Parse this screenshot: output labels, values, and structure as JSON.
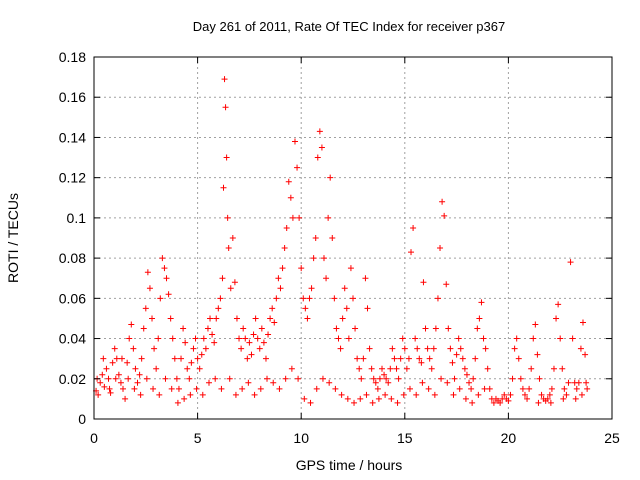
{
  "chart_data": {
    "type": "scatter",
    "title": "Day 261 of 2011, Rate Of TEC Index for receiver p367",
    "xlabel": "GPS time / hours",
    "ylabel": "ROTI / TECUs",
    "xlim": [
      0,
      25
    ],
    "ylim": [
      0,
      0.18
    ],
    "xticks": [
      0,
      5,
      10,
      15,
      20,
      25
    ],
    "xtick_labels": [
      "0",
      "5",
      "10",
      "15",
      "20",
      "25"
    ],
    "yticks": [
      0,
      0.02,
      0.04,
      0.06,
      0.08,
      0.1,
      0.12,
      0.14,
      0.16,
      0.18
    ],
    "ytick_labels": [
      "0",
      "0.02",
      "0.04",
      "0.06",
      "0.08",
      "0.1",
      "0.12",
      "0.14",
      "0.16",
      "0.18"
    ],
    "grid": true,
    "marker": "plus",
    "color": "#ff0000",
    "series": [
      {
        "points": [
          [
            0.1,
            0.014
          ],
          [
            0.2,
            0.012
          ],
          [
            0.3,
            0.018
          ],
          [
            0.4,
            0.022
          ],
          [
            0.5,
            0.016
          ],
          [
            0.6,
            0.025
          ],
          [
            0.7,
            0.02
          ],
          [
            0.8,
            0.013
          ],
          [
            0.9,
            0.028
          ],
          [
            1.0,
            0.035
          ],
          [
            1.1,
            0.03
          ],
          [
            1.2,
            0.022
          ],
          [
            1.3,
            0.018
          ],
          [
            1.4,
            0.015
          ],
          [
            1.5,
            0.01
          ],
          [
            1.6,
            0.028
          ],
          [
            1.7,
            0.04
          ],
          [
            1.8,
            0.047
          ],
          [
            1.9,
            0.035
          ],
          [
            2.0,
            0.025
          ],
          [
            2.1,
            0.018
          ],
          [
            2.2,
            0.022
          ],
          [
            2.3,
            0.03
          ],
          [
            2.4,
            0.045
          ],
          [
            2.5,
            0.055
          ],
          [
            2.6,
            0.073
          ],
          [
            2.7,
            0.065
          ],
          [
            2.8,
            0.05
          ],
          [
            2.9,
            0.035
          ],
          [
            3.0,
            0.025
          ],
          [
            3.1,
            0.04
          ],
          [
            3.2,
            0.06
          ],
          [
            3.3,
            0.08
          ],
          [
            3.4,
            0.075
          ],
          [
            3.5,
            0.07
          ],
          [
            3.6,
            0.062
          ],
          [
            3.7,
            0.05
          ],
          [
            3.8,
            0.04
          ],
          [
            3.9,
            0.03
          ],
          [
            4.0,
            0.02
          ],
          [
            4.1,
            0.015
          ],
          [
            4.2,
            0.03
          ],
          [
            4.3,
            0.045
          ],
          [
            4.4,
            0.038
          ],
          [
            4.5,
            0.025
          ],
          [
            4.6,
            0.02
          ],
          [
            4.7,
            0.028
          ],
          [
            4.8,
            0.035
          ],
          [
            4.9,
            0.04
          ],
          [
            5.0,
            0.03
          ],
          [
            5.1,
            0.025
          ],
          [
            5.2,
            0.032
          ],
          [
            5.3,
            0.04
          ],
          [
            5.4,
            0.035
          ],
          [
            5.5,
            0.045
          ],
          [
            5.6,
            0.05
          ],
          [
            5.7,
            0.042
          ],
          [
            5.8,
            0.038
          ],
          [
            5.9,
            0.05
          ],
          [
            6.0,
            0.055
          ],
          [
            6.1,
            0.06
          ],
          [
            6.2,
            0.07
          ],
          [
            6.25,
            0.115
          ],
          [
            6.3,
            0.169
          ],
          [
            6.35,
            0.155
          ],
          [
            6.4,
            0.13
          ],
          [
            6.45,
            0.1
          ],
          [
            6.5,
            0.085
          ],
          [
            6.6,
            0.065
          ],
          [
            6.7,
            0.09
          ],
          [
            6.8,
            0.068
          ],
          [
            6.9,
            0.05
          ],
          [
            7.0,
            0.04
          ],
          [
            7.1,
            0.035
          ],
          [
            7.2,
            0.045
          ],
          [
            7.3,
            0.04
          ],
          [
            7.4,
            0.03
          ],
          [
            7.5,
            0.038
          ],
          [
            7.6,
            0.032
          ],
          [
            7.7,
            0.042
          ],
          [
            7.8,
            0.05
          ],
          [
            7.9,
            0.04
          ],
          [
            8.0,
            0.035
          ],
          [
            8.1,
            0.045
          ],
          [
            8.2,
            0.038
          ],
          [
            8.3,
            0.03
          ],
          [
            8.4,
            0.042
          ],
          [
            8.5,
            0.05
          ],
          [
            8.6,
            0.055
          ],
          [
            8.7,
            0.048
          ],
          [
            8.8,
            0.06
          ],
          [
            8.9,
            0.07
          ],
          [
            9.0,
            0.065
          ],
          [
            9.1,
            0.075
          ],
          [
            9.2,
            0.085
          ],
          [
            9.3,
            0.095
          ],
          [
            9.4,
            0.118
          ],
          [
            9.5,
            0.11
          ],
          [
            9.6,
            0.1
          ],
          [
            9.7,
            0.138
          ],
          [
            9.8,
            0.125
          ],
          [
            9.9,
            0.1
          ],
          [
            10.0,
            0.075
          ],
          [
            10.1,
            0.06
          ],
          [
            10.2,
            0.055
          ],
          [
            10.3,
            0.05
          ],
          [
            10.4,
            0.06
          ],
          [
            10.5,
            0.065
          ],
          [
            10.6,
            0.08
          ],
          [
            10.7,
            0.09
          ],
          [
            10.8,
            0.13
          ],
          [
            10.9,
            0.143
          ],
          [
            11.0,
            0.135
          ],
          [
            11.1,
            0.08
          ],
          [
            11.2,
            0.07
          ],
          [
            11.3,
            0.1
          ],
          [
            11.4,
            0.12
          ],
          [
            11.5,
            0.09
          ],
          [
            11.6,
            0.06
          ],
          [
            11.7,
            0.045
          ],
          [
            11.8,
            0.04
          ],
          [
            11.9,
            0.035
          ],
          [
            12.0,
            0.05
          ],
          [
            12.1,
            0.065
          ],
          [
            12.2,
            0.055
          ],
          [
            12.3,
            0.04
          ],
          [
            12.4,
            0.075
          ],
          [
            12.5,
            0.06
          ],
          [
            12.6,
            0.045
          ],
          [
            12.7,
            0.03
          ],
          [
            12.8,
            0.025
          ],
          [
            12.9,
            0.02
          ],
          [
            13.0,
            0.03
          ],
          [
            13.1,
            0.07
          ],
          [
            13.2,
            0.055
          ],
          [
            13.3,
            0.035
          ],
          [
            13.4,
            0.025
          ],
          [
            13.5,
            0.02
          ],
          [
            13.6,
            0.018
          ],
          [
            13.7,
            0.015
          ],
          [
            13.8,
            0.02
          ],
          [
            13.9,
            0.025
          ],
          [
            14.0,
            0.022
          ],
          [
            14.1,
            0.02
          ],
          [
            14.2,
            0.018
          ],
          [
            14.3,
            0.025
          ],
          [
            14.4,
            0.035
          ],
          [
            14.5,
            0.03
          ],
          [
            14.6,
            0.025
          ],
          [
            14.7,
            0.02
          ],
          [
            14.8,
            0.03
          ],
          [
            14.9,
            0.04
          ],
          [
            15.0,
            0.035
          ],
          [
            15.1,
            0.025
          ],
          [
            15.2,
            0.03
          ],
          [
            15.3,
            0.083
          ],
          [
            15.4,
            0.095
          ],
          [
            15.5,
            0.04
          ],
          [
            15.6,
            0.035
          ],
          [
            15.7,
            0.03
          ],
          [
            15.8,
            0.028
          ],
          [
            15.9,
            0.068
          ],
          [
            16.0,
            0.045
          ],
          [
            16.1,
            0.035
          ],
          [
            16.2,
            0.03
          ],
          [
            16.3,
            0.025
          ],
          [
            16.4,
            0.035
          ],
          [
            16.5,
            0.045
          ],
          [
            16.6,
            0.06
          ],
          [
            16.7,
            0.085
          ],
          [
            16.8,
            0.108
          ],
          [
            16.9,
            0.101
          ],
          [
            17.0,
            0.067
          ],
          [
            17.1,
            0.045
          ],
          [
            17.2,
            0.035
          ],
          [
            17.3,
            0.028
          ],
          [
            17.4,
            0.02
          ],
          [
            17.5,
            0.032
          ],
          [
            17.6,
            0.04
          ],
          [
            17.7,
            0.035
          ],
          [
            17.8,
            0.03
          ],
          [
            17.9,
            0.025
          ],
          [
            18.0,
            0.022
          ],
          [
            18.1,
            0.018
          ],
          [
            18.2,
            0.015
          ],
          [
            18.3,
            0.02
          ],
          [
            18.4,
            0.03
          ],
          [
            18.5,
            0.045
          ],
          [
            18.6,
            0.05
          ],
          [
            18.7,
            0.058
          ],
          [
            18.8,
            0.04
          ],
          [
            18.9,
            0.035
          ],
          [
            19.0,
            0.025
          ],
          [
            19.1,
            0.015
          ],
          [
            19.2,
            0.01
          ],
          [
            19.3,
            0.008
          ],
          [
            19.4,
            0.01
          ],
          [
            19.5,
            0.009
          ],
          [
            19.6,
            0.008
          ],
          [
            19.7,
            0.01
          ],
          [
            19.8,
            0.012
          ],
          [
            19.9,
            0.01
          ],
          [
            20.0,
            0.009
          ],
          [
            20.1,
            0.012
          ],
          [
            20.2,
            0.02
          ],
          [
            20.3,
            0.035
          ],
          [
            20.4,
            0.04
          ],
          [
            20.5,
            0.03
          ],
          [
            20.6,
            0.02
          ],
          [
            20.7,
            0.015
          ],
          [
            20.8,
            0.012
          ],
          [
            20.9,
            0.01
          ],
          [
            21.0,
            0.015
          ],
          [
            21.1,
            0.025
          ],
          [
            21.2,
            0.04
          ],
          [
            21.3,
            0.047
          ],
          [
            21.4,
            0.032
          ],
          [
            21.5,
            0.02
          ],
          [
            21.6,
            0.012
          ],
          [
            21.7,
            0.01
          ],
          [
            21.8,
            0.009
          ],
          [
            21.9,
            0.01
          ],
          [
            22.0,
            0.012
          ],
          [
            22.1,
            0.015
          ],
          [
            22.2,
            0.025
          ],
          [
            22.3,
            0.05
          ],
          [
            22.4,
            0.057
          ],
          [
            22.5,
            0.04
          ],
          [
            22.6,
            0.025
          ],
          [
            22.7,
            0.015
          ],
          [
            22.8,
            0.012
          ],
          [
            22.9,
            0.018
          ],
          [
            23.0,
            0.078
          ],
          [
            23.1,
            0.04
          ],
          [
            23.2,
            0.018
          ],
          [
            23.3,
            0.015
          ],
          [
            23.4,
            0.018
          ],
          [
            23.5,
            0.035
          ],
          [
            23.6,
            0.048
          ],
          [
            23.7,
            0.032
          ],
          [
            23.8,
            0.015
          ],
          [
            0.15,
            0.02
          ],
          [
            0.45,
            0.03
          ],
          [
            0.75,
            0.015
          ],
          [
            1.05,
            0.02
          ],
          [
            1.35,
            0.03
          ],
          [
            1.65,
            0.02
          ],
          [
            1.95,
            0.015
          ],
          [
            2.25,
            0.012
          ],
          [
            2.55,
            0.02
          ],
          [
            2.85,
            0.015
          ],
          [
            3.15,
            0.012
          ],
          [
            3.45,
            0.02
          ],
          [
            3.75,
            0.015
          ],
          [
            4.05,
            0.008
          ],
          [
            4.35,
            0.01
          ],
          [
            4.65,
            0.012
          ],
          [
            4.95,
            0.015
          ],
          [
            5.25,
            0.012
          ],
          [
            5.55,
            0.018
          ],
          [
            5.85,
            0.02
          ],
          [
            6.15,
            0.015
          ],
          [
            6.55,
            0.02
          ],
          [
            6.85,
            0.012
          ],
          [
            7.15,
            0.015
          ],
          [
            7.45,
            0.018
          ],
          [
            7.75,
            0.012
          ],
          [
            8.05,
            0.015
          ],
          [
            8.35,
            0.02
          ],
          [
            8.65,
            0.018
          ],
          [
            8.95,
            0.015
          ],
          [
            9.25,
            0.02
          ],
          [
            9.55,
            0.025
          ],
          [
            9.85,
            0.02
          ],
          [
            10.15,
            0.01
          ],
          [
            10.45,
            0.008
          ],
          [
            10.75,
            0.015
          ],
          [
            11.05,
            0.02
          ],
          [
            11.35,
            0.018
          ],
          [
            11.65,
            0.015
          ],
          [
            11.95,
            0.012
          ],
          [
            12.25,
            0.01
          ],
          [
            12.55,
            0.008
          ],
          [
            12.85,
            0.01
          ],
          [
            13.15,
            0.012
          ],
          [
            13.45,
            0.008
          ],
          [
            13.75,
            0.01
          ],
          [
            14.05,
            0.012
          ],
          [
            14.35,
            0.01
          ],
          [
            14.65,
            0.008
          ],
          [
            14.95,
            0.012
          ],
          [
            15.25,
            0.015
          ],
          [
            15.55,
            0.012
          ],
          [
            15.85,
            0.018
          ],
          [
            16.15,
            0.015
          ],
          [
            16.45,
            0.012
          ],
          [
            16.75,
            0.02
          ],
          [
            17.05,
            0.018
          ],
          [
            17.35,
            0.012
          ],
          [
            17.65,
            0.015
          ],
          [
            17.95,
            0.01
          ],
          [
            18.25,
            0.008
          ],
          [
            18.55,
            0.012
          ],
          [
            18.85,
            0.015
          ],
          [
            21.45,
            0.008
          ],
          [
            22.05,
            0.008
          ],
          [
            22.65,
            0.01
          ],
          [
            23.25,
            0.01
          ],
          [
            23.55,
            0.012
          ],
          [
            23.75,
            0.018
          ]
        ]
      }
    ]
  }
}
